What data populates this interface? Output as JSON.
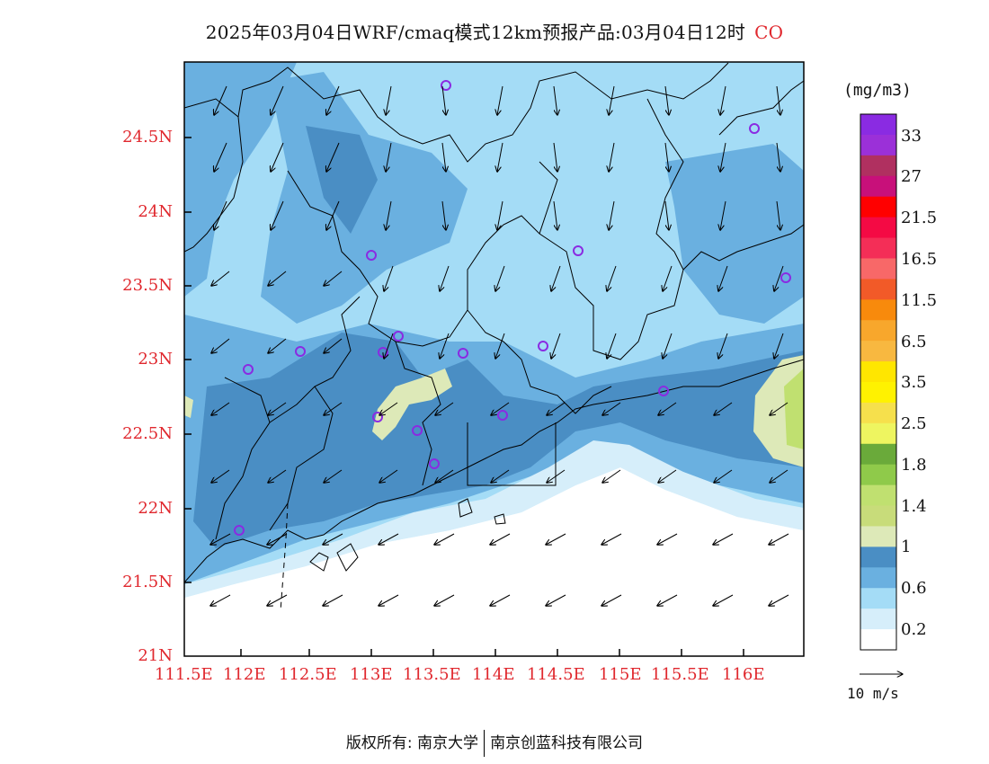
{
  "title": {
    "text": "2025年03月04日WRF/cmaq模式12km预报产品:03月04日12时",
    "species": "CO"
  },
  "lat_labels": [
    "24.5N",
    "24N",
    "23.5N",
    "23N",
    "22.5N",
    "22N",
    "21.5N",
    "21N"
  ],
  "lon_labels": [
    "111.5E",
    "112E",
    "112.5E",
    "113E",
    "113.5E",
    "114E",
    "114.5E",
    "115E",
    "115.5E",
    "116E"
  ],
  "colorbar": {
    "units": "(mg/m3)",
    "labels": [
      "33",
      "27",
      "21.5",
      "16.5",
      "11.5",
      "6.5",
      "3.5",
      "2.5",
      "1.8",
      "1.4",
      "1",
      "0.6",
      "0.2"
    ],
    "colors_top_to_bottom": [
      "#8a2be2",
      "#9b30d8",
      "#b03060",
      "#c8107a",
      "#ff0000",
      "#f40a44",
      "#f42e57",
      "#f86868",
      "#f25a28",
      "#f88a0c",
      "#f8a72c",
      "#f8b840",
      "#ffe600",
      "#fff200",
      "#f6e04c",
      "#eef560",
      "#6aaa3a",
      "#8fca4a",
      "#c0e070",
      "#c8dc7a",
      "#dde9b8",
      "#4a8ec4",
      "#6ab0e0",
      "#a4dcf6",
      "#d6eefa",
      "#ffffff"
    ]
  },
  "field_colors": {
    "white": "#ffffff",
    "level_0_2": "#d6eefa",
    "level_0_6": "#a4dcf6",
    "level_0_8": "#6ab0e0",
    "level_1_0": "#4a8ec4",
    "level_1_2": "#dde9b8",
    "level_1_4": "#c0e070"
  },
  "reference_vector": "10 m/s",
  "footer": {
    "left": "版权所有: 南京大学",
    "right": "南京创蓝科技有限公司"
  }
}
